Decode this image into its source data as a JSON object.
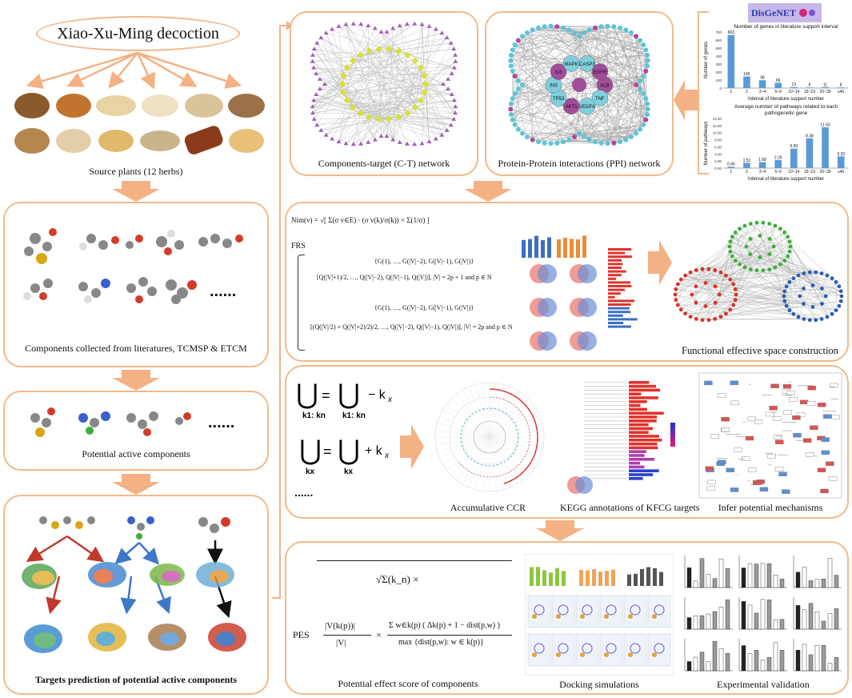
{
  "title": "Xiao-Xu-Ming decoction",
  "source_caption": "Source plants (12 herbs)",
  "components_caption": "Components collected from literatures, TCMSP & ETCM",
  "active_caption": "Potential active components",
  "targets_caption": "Targets prediction of potential active components",
  "ct_caption": "Components-target (C-T) network",
  "ppi_caption": "Protein-Protein interactions (PPI) network",
  "ppi_nodes": [
    "ALB",
    "TNF",
    "VEGFA",
    "AKT1",
    "TP53",
    "INS",
    "IL6",
    "MAPK",
    "CASP3",
    "EGFR"
  ],
  "disgenet_logo": "DisGeNET",
  "ellipsis": "......",
  "chart_genes": {
    "title": "Number of genes in literature support interval",
    "xlabel": "Interval of literature support number",
    "ylabel": "Number of genes",
    "categories": [
      "1",
      "2",
      "3~4",
      "5~9",
      "10~14",
      "15~19",
      "20~39",
      "≥40"
    ],
    "values": [
      663,
      145,
      98,
      66,
      13,
      8,
      11,
      8
    ],
    "labels": [
      "663",
      "145",
      "98",
      "66",
      "13",
      "8",
      "11",
      "8"
    ],
    "ylim": [
      0,
      700
    ],
    "yticks": [
      "0",
      "100",
      "200",
      "300",
      "400",
      "500",
      "600",
      "700"
    ]
  },
  "chart_pathways": {
    "title_line1": "Average number of pathways related to each",
    "title_line2": "pathogenetic gene",
    "xlabel": "Interval of literature support number",
    "ylabel": "Number of pathways",
    "categories": [
      "1",
      "2",
      "3~4",
      "5~9",
      "10~14",
      "15~19",
      "20~39",
      "≥40"
    ],
    "values": [
      0.4,
      1.51,
      1.68,
      2.26,
      5.5,
      8.38,
      11.5,
      3.33
    ],
    "labels": [
      "0.40",
      "1.51",
      "1.68",
      "2.26",
      "5.50",
      "8.38",
      "11.50",
      "3.33"
    ],
    "ylim": [
      0,
      14
    ],
    "yticks": [
      "0.00",
      "2.00",
      "4.00",
      "6.00",
      "8.00",
      "10.00",
      "12.00",
      "14.00"
    ]
  },
  "fes_caption": "Functional effective space construction",
  "formula_nim": "Nim(v) = √[ Σ(σ v∈E) · (σ v(k)/σ(k)) × Σ(1/σ) ]",
  "formula_frs_label": "FRS",
  "formula_frs_1": "{G(1), …, G(|V|−2), G(|V|−1), G(|V|)}",
  "formula_frs_2": "[Q(|V|+1)/2, …, Q(|V|−2), Q(|V|−1), Q(|V|)],  |V| = 2p + 1 and p ∈ N",
  "formula_frs_3": "{G(1), …, G(|V|−2), G(|V|−1), G(|V|)}",
  "formula_frs_4": "[(Q(|V|/2) + Q(|V|+2)/2)/2, …, Q(|V|−2), Q(|V|−1), Q(|V|)],  |V| = 2p and p ∈ N",
  "union_line1_rhs": "− k",
  "union_line2_rhs": "+ k",
  "union_sub_a": "k1: kn",
  "union_sub_b": "kx",
  "union_k": "x",
  "ccr_caption": "Accumulative CCR",
  "kegg_caption": "KEGG annotations of KFCG targets",
  "mech_caption": "Infer potential mechanisms",
  "pes_label": "PES",
  "pes_numer": "√Σ(k_n) ×",
  "pes_frac_num": "|V(k(p))|",
  "pes_frac_den": "|V|",
  "pes_sum_num": "Σ w∈k(p) ( Δk(p) + 1 − dist(p,w) )",
  "pes_sum_den": "max {dist(p,w): w ∈ k(p)}",
  "pes_caption": "Potential effect score of components",
  "dock_caption": "Docking simulations",
  "exp_caption": "Experimental validation",
  "colors": {
    "border": "#f2b98a",
    "arrow": "#f4b183",
    "bar": "#5b9bd5",
    "red": "#d9312b",
    "green": "#3fae3a",
    "blue": "#2c5fb0"
  }
}
